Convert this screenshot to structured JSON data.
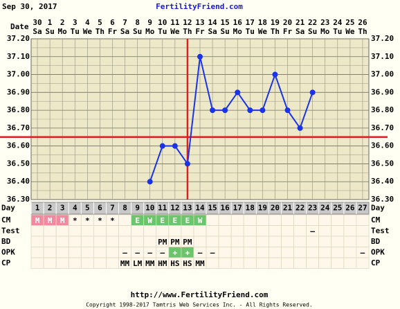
{
  "chart_data": {
    "type": "line",
    "header_date": "Sep 30, 2017",
    "site": "FertilityFriend.com",
    "date_label": "Date",
    "day_label": "Day",
    "dates": [
      "30",
      "1",
      "2",
      "3",
      "4",
      "5",
      "6",
      "7",
      "8",
      "9",
      "10",
      "11",
      "12",
      "13",
      "14",
      "15",
      "16",
      "17",
      "18",
      "19",
      "20",
      "21",
      "22",
      "23",
      "24",
      "25",
      "26"
    ],
    "weekdays": [
      "Sa",
      "Su",
      "Mo",
      "Tu",
      "We",
      "Th",
      "Fr",
      "Sa",
      "Su",
      "Mo",
      "Tu",
      "We",
      "Th",
      "Fr",
      "Sa",
      "Su",
      "Mo",
      "Tu",
      "We",
      "Th",
      "Fr",
      "Sa",
      "Su",
      "Mo",
      "Tu",
      "We",
      "Th"
    ],
    "categories": [
      1,
      2,
      3,
      4,
      5,
      6,
      7,
      8,
      9,
      10,
      11,
      12,
      13,
      14,
      15,
      16,
      17,
      18,
      19,
      20,
      21,
      22,
      23,
      24,
      25,
      26,
      27
    ],
    "series": [
      {
        "color": "#1a33e6",
        "values": [
          null,
          null,
          null,
          null,
          null,
          null,
          null,
          null,
          null,
          36.4,
          36.6,
          36.6,
          36.5,
          37.1,
          36.8,
          36.8,
          36.9,
          36.8,
          36.8,
          37.0,
          36.8,
          36.7,
          36.9,
          null,
          null,
          null,
          null
        ]
      }
    ],
    "ylim": [
      36.3,
      37.2
    ],
    "yticks": [
      {
        "value": 36.3,
        "label": "36.30"
      },
      {
        "value": 36.4,
        "label": "36.40"
      },
      {
        "value": 36.5,
        "label": "36.50"
      },
      {
        "value": 36.6,
        "label": "36.60"
      },
      {
        "value": 36.7,
        "label": "36.70"
      },
      {
        "value": 36.8,
        "label": "36.80"
      },
      {
        "value": 36.9,
        "label": "36.90"
      },
      {
        "value": 37.0,
        "label": "37.00"
      },
      {
        "value": 37.1,
        "label": "37.10"
      },
      {
        "value": 37.2,
        "label": "37.20"
      }
    ],
    "coverline": 36.65,
    "ovulation_day": 13,
    "line_color": "#e02020",
    "grid": true,
    "rows": [
      {
        "label": "CM",
        "cells": [
          "M",
          "M",
          "M",
          "*",
          "*",
          "*",
          "*",
          null,
          "E",
          "W",
          "E",
          "E",
          "E",
          "W",
          null,
          null,
          null,
          null,
          null,
          null,
          null,
          null,
          null,
          null,
          null,
          null,
          null
        ],
        "fills": [
          "#f08aa0",
          "#f08aa0",
          "#f08aa0",
          null,
          null,
          null,
          null,
          null,
          "#6cc46c",
          "#6cc46c",
          "#6cc46c",
          "#6cc46c",
          "#6cc46c",
          "#6cc46c",
          null,
          null,
          null,
          null,
          null,
          null,
          null,
          null,
          null,
          null,
          null,
          null,
          null
        ]
      },
      {
        "label": "Test",
        "cells": [
          null,
          null,
          null,
          null,
          null,
          null,
          null,
          null,
          null,
          null,
          null,
          null,
          null,
          null,
          null,
          null,
          null,
          null,
          null,
          null,
          null,
          null,
          "–",
          null,
          null,
          null,
          null
        ],
        "fills": []
      },
      {
        "label": "BD",
        "cells": [
          null,
          null,
          null,
          null,
          null,
          null,
          null,
          null,
          null,
          null,
          "PM",
          "PM",
          "PM",
          null,
          null,
          null,
          null,
          null,
          null,
          null,
          null,
          null,
          null,
          null,
          null,
          null,
          null
        ],
        "fills": []
      },
      {
        "label": "OPK",
        "cells": [
          null,
          null,
          null,
          null,
          null,
          null,
          null,
          "–",
          "–",
          "–",
          "–",
          "+",
          "+",
          "–",
          "–",
          null,
          null,
          null,
          null,
          null,
          null,
          null,
          null,
          null,
          null,
          null,
          "–"
        ],
        "fills": [
          null,
          null,
          null,
          null,
          null,
          null,
          null,
          null,
          null,
          null,
          null,
          "#6cc46c",
          "#6cc46c",
          null,
          null,
          null,
          null,
          null,
          null,
          null,
          null,
          null,
          null,
          null,
          null,
          null,
          null
        ]
      },
      {
        "label": "CP",
        "cells": [
          null,
          null,
          null,
          null,
          null,
          null,
          null,
          "MM",
          "LM",
          "MM",
          "HM",
          "HS",
          "HS",
          "MM",
          null,
          null,
          null,
          null,
          null,
          null,
          null,
          null,
          null,
          null,
          null,
          null,
          null
        ],
        "fills": []
      }
    ],
    "footer_url": "http://www.FertilityFriend.com",
    "copyright": "Copyright 1998-2017 Tamtris Web Services Inc. - All Rights Reserved."
  }
}
